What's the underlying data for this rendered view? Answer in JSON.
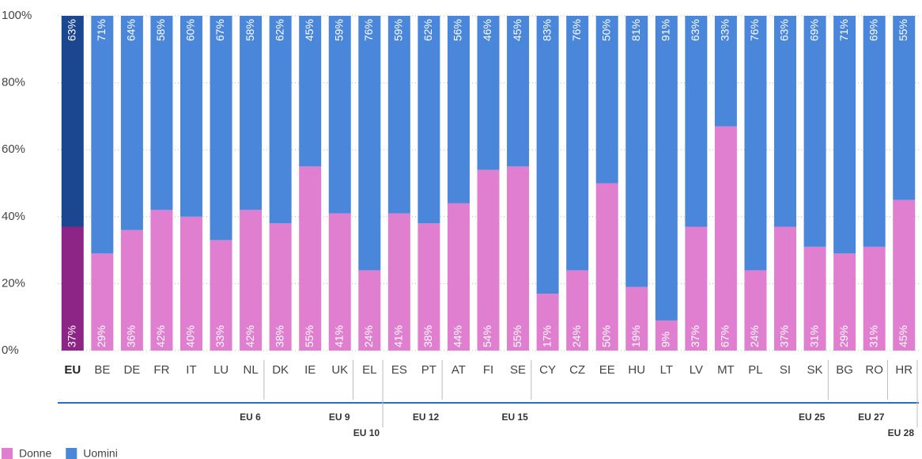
{
  "chart_data": {
    "type": "stacked_bar",
    "categories": [
      "EU",
      "BE",
      "DE",
      "FR",
      "IT",
      "LU",
      "NL",
      "DK",
      "IE",
      "UK",
      "EL",
      "ES",
      "PT",
      "AT",
      "FI",
      "SE",
      "CY",
      "CZ",
      "EE",
      "HU",
      "LT",
      "LV",
      "MT",
      "PL",
      "SI",
      "SK",
      "BG",
      "RO",
      "HR"
    ],
    "highlight_category": "EU",
    "series": [
      {
        "name": "Donne",
        "color": "#e07fcf",
        "highlight_color": "#8c2586",
        "values": [
          37,
          29,
          36,
          42,
          40,
          33,
          42,
          38,
          55,
          41,
          24,
          41,
          38,
          44,
          54,
          55,
          17,
          24,
          50,
          19,
          9,
          37,
          67,
          24,
          37,
          31,
          29,
          31,
          45
        ],
        "value_labels": [
          "37%",
          "29%",
          "36%",
          "42%",
          "40%",
          "33%",
          "42%",
          "38%",
          "55%",
          "41%",
          "24%",
          "41%",
          "38%",
          "44%",
          "54%",
          "55%",
          "17%",
          "24%",
          "50%",
          "19%",
          "9%",
          "37%",
          "67%",
          "24%",
          "37%",
          "31%",
          "29%",
          "31%",
          "45%"
        ]
      },
      {
        "name": "Uomini",
        "color": "#4a87da",
        "highlight_color": "#1b4690",
        "values": [
          63,
          71,
          64,
          58,
          60,
          67,
          58,
          62,
          45,
          59,
          76,
          59,
          62,
          56,
          46,
          45,
          83,
          76,
          50,
          81,
          91,
          63,
          33,
          76,
          63,
          69,
          71,
          69,
          55
        ],
        "value_labels": [
          "63%",
          "71%",
          "64%",
          "58%",
          "60%",
          "67%",
          "58%",
          "62%",
          "45%",
          "59%",
          "76%",
          "59%",
          "62%",
          "56%",
          "46%",
          "45%",
          "83%",
          "76%",
          "50%",
          "81%",
          "91%",
          "63%",
          "33%",
          "76%",
          "63%",
          "69%",
          "71%",
          "69%",
          "55%"
        ]
      }
    ],
    "ylim": [
      0,
      100
    ],
    "yticks": [
      {
        "value": 0,
        "label": "0%"
      },
      {
        "value": 20,
        "label": "20%"
      },
      {
        "value": 40,
        "label": "40%"
      },
      {
        "value": 60,
        "label": "60%"
      },
      {
        "value": 80,
        "label": "80%"
      },
      {
        "value": 100,
        "label": "100%"
      }
    ],
    "grid": true,
    "groups": [
      {
        "label": "EU 6",
        "last_category": "NL"
      },
      {
        "label": "EU 9",
        "last_category": "UK"
      },
      {
        "label": "EU 10",
        "last_category": "EL"
      },
      {
        "label": "EU 12",
        "last_category": "PT"
      },
      {
        "label": "EU 15",
        "last_category": "SE"
      },
      {
        "label": "EU 25",
        "last_category": "SK"
      },
      {
        "label": "EU 27",
        "last_category": "RO"
      },
      {
        "label": "EU 28",
        "last_category": "HR"
      }
    ]
  }
}
